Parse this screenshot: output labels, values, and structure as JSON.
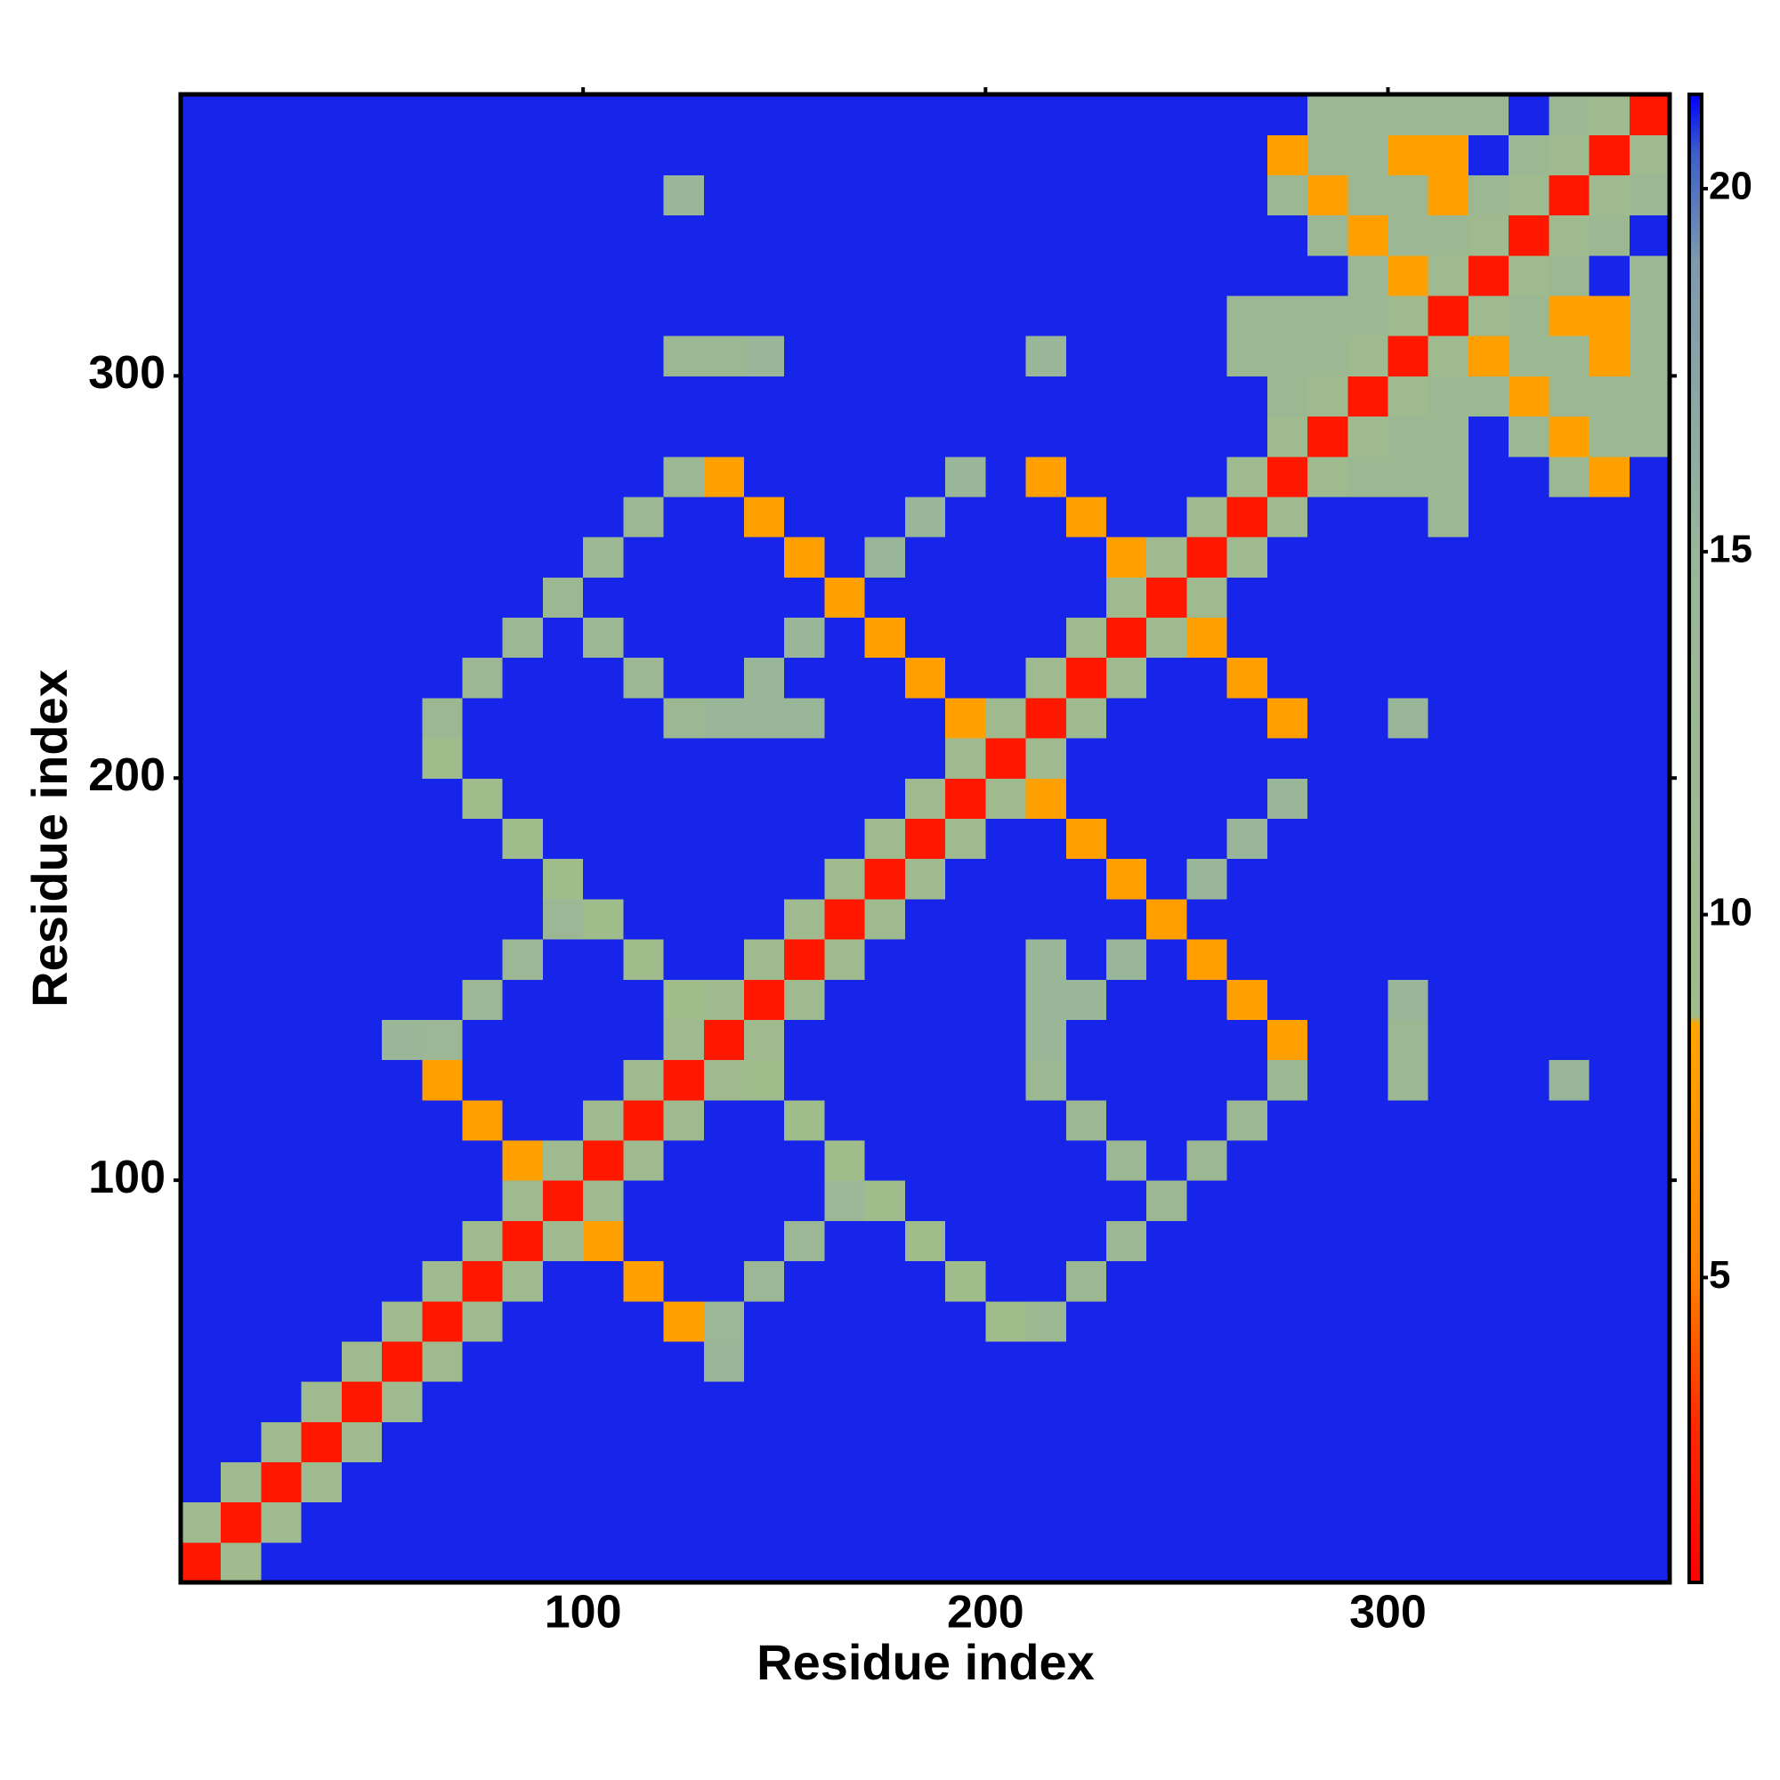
{
  "chart_data": {
    "type": "heatmap",
    "x_label": "Residue index",
    "y_label": "Residue index",
    "x_bins": [
      0,
      10,
      20,
      30,
      40,
      50,
      60,
      70,
      80,
      90,
      100,
      110,
      120,
      130,
      140,
      150,
      160,
      170,
      180,
      190,
      200,
      210,
      220,
      230,
      240,
      250,
      260,
      270,
      280,
      290,
      300,
      310,
      320,
      330,
      340,
      350,
      360,
      370
    ],
    "y_bins": [
      0,
      10,
      20,
      30,
      40,
      50,
      60,
      70,
      80,
      90,
      100,
      110,
      120,
      130,
      140,
      150,
      160,
      170,
      180,
      190,
      200,
      210,
      220,
      230,
      240,
      250,
      260,
      270,
      280,
      290,
      300,
      310,
      320,
      330,
      340,
      350,
      360,
      370
    ],
    "xlim": [
      0,
      370
    ],
    "ylim": [
      0,
      370
    ],
    "xticks": [
      100,
      200,
      300
    ],
    "yticks": [
      100,
      200,
      300
    ],
    "zlim": [
      0.8,
      21.3
    ],
    "zticks": [
      5,
      10,
      15,
      20
    ],
    "colorscale": [
      {
        "value": 0.8,
        "color": "#ff0000"
      },
      {
        "value": 3,
        "color": "#ff2a00"
      },
      {
        "value": 5,
        "color": "#ff8000"
      },
      {
        "value": 8.5,
        "color": "#ffa500"
      },
      {
        "value": 8.6,
        "color": "#9fbc8a"
      },
      {
        "value": 15,
        "color": "#99b59a"
      },
      {
        "value": 19,
        "color": "#7d9aae"
      },
      {
        "value": 20.5,
        "color": "#3d5fc8"
      },
      {
        "value": 21.3,
        "color": "#0000ff"
      }
    ],
    "z": [
      [
        2,
        10,
        21,
        21,
        21,
        21,
        21,
        21,
        21,
        21,
        21,
        21,
        21,
        21,
        21,
        21,
        21,
        21,
        21,
        21,
        21,
        21,
        21,
        21,
        21,
        21,
        21,
        21,
        21,
        21,
        21,
        21,
        21,
        21,
        21,
        21,
        21
      ],
      [
        10,
        2,
        10,
        21,
        21,
        21,
        21,
        21,
        21,
        21,
        21,
        21,
        21,
        21,
        21,
        21,
        21,
        21,
        21,
        21,
        21,
        21,
        21,
        21,
        21,
        21,
        21,
        21,
        21,
        21,
        21,
        21,
        21,
        21,
        21,
        21,
        21
      ],
      [
        21,
        10,
        2,
        10,
        21,
        21,
        21,
        21,
        21,
        21,
        21,
        21,
        21,
        21,
        21,
        21,
        21,
        21,
        21,
        21,
        21,
        21,
        21,
        21,
        21,
        21,
        21,
        21,
        21,
        21,
        21,
        21,
        21,
        21,
        21,
        21,
        21
      ],
      [
        21,
        21,
        10,
        2,
        10,
        21,
        21,
        21,
        21,
        21,
        21,
        21,
        21,
        21,
        21,
        21,
        21,
        21,
        21,
        21,
        21,
        21,
        21,
        21,
        21,
        21,
        21,
        21,
        21,
        21,
        21,
        21,
        21,
        21,
        21,
        21,
        21
      ],
      [
        21,
        21,
        21,
        10,
        2,
        10,
        21,
        21,
        21,
        21,
        21,
        21,
        21,
        21,
        21,
        21,
        21,
        21,
        21,
        21,
        21,
        21,
        21,
        21,
        21,
        21,
        21,
        21,
        21,
        21,
        21,
        21,
        21,
        21,
        21,
        21,
        21
      ],
      [
        21,
        21,
        21,
        21,
        10,
        2,
        10,
        21,
        21,
        21,
        21,
        21,
        21,
        14,
        21,
        21,
        21,
        21,
        21,
        21,
        21,
        21,
        21,
        21,
        21,
        21,
        21,
        21,
        21,
        21,
        21,
        21,
        21,
        21,
        21,
        21,
        21
      ],
      [
        21,
        21,
        21,
        21,
        21,
        10,
        2,
        10,
        21,
        21,
        21,
        21,
        8,
        13,
        21,
        21,
        21,
        21,
        21,
        21,
        9,
        12,
        21,
        21,
        21,
        21,
        21,
        21,
        21,
        21,
        21,
        21,
        21,
        21,
        21,
        21,
        21
      ],
      [
        21,
        21,
        21,
        21,
        21,
        21,
        10,
        2,
        10,
        21,
        21,
        8,
        21,
        21,
        13,
        21,
        21,
        21,
        21,
        9,
        21,
        21,
        12,
        21,
        21,
        21,
        21,
        21,
        21,
        21,
        21,
        21,
        21,
        21,
        21,
        21,
        21
      ],
      [
        21,
        21,
        21,
        21,
        21,
        21,
        21,
        10,
        2,
        10,
        8,
        21,
        21,
        21,
        21,
        13,
        21,
        21,
        9,
        21,
        21,
        21,
        21,
        12,
        21,
        21,
        21,
        21,
        21,
        21,
        21,
        21,
        21,
        21,
        21,
        21,
        21
      ],
      [
        21,
        21,
        21,
        21,
        21,
        21,
        21,
        21,
        10,
        2,
        10,
        21,
        21,
        21,
        21,
        21,
        13,
        9,
        21,
        21,
        21,
        21,
        21,
        21,
        12,
        21,
        21,
        21,
        21,
        21,
        21,
        21,
        21,
        21,
        21,
        21,
        21
      ],
      [
        21,
        21,
        21,
        21,
        21,
        21,
        21,
        21,
        8,
        10,
        2,
        10,
        21,
        21,
        21,
        21,
        9,
        21,
        21,
        21,
        21,
        21,
        21,
        12,
        21,
        12,
        21,
        21,
        21,
        21,
        21,
        21,
        21,
        21,
        21,
        21,
        21
      ],
      [
        21,
        21,
        21,
        21,
        21,
        21,
        21,
        8,
        21,
        21,
        10,
        2,
        10,
        21,
        21,
        9,
        21,
        21,
        21,
        21,
        21,
        21,
        12,
        21,
        21,
        21,
        12,
        21,
        21,
        21,
        21,
        21,
        21,
        21,
        21,
        21,
        21
      ],
      [
        21,
        21,
        21,
        21,
        21,
        21,
        8,
        21,
        21,
        21,
        21,
        10,
        2,
        10,
        9,
        21,
        21,
        21,
        21,
        21,
        21,
        12,
        21,
        21,
        21,
        21,
        21,
        12,
        21,
        21,
        12,
        21,
        21,
        21,
        14,
        21,
        21
      ],
      [
        21,
        21,
        21,
        21,
        21,
        14,
        13,
        21,
        21,
        21,
        21,
        21,
        10,
        2,
        10,
        21,
        21,
        21,
        21,
        21,
        21,
        14,
        21,
        21,
        21,
        21,
        21,
        8,
        21,
        21,
        12,
        21,
        21,
        21,
        21,
        21,
        21
      ],
      [
        21,
        21,
        21,
        21,
        21,
        21,
        21,
        13,
        21,
        21,
        21,
        21,
        9,
        10,
        2,
        10,
        21,
        21,
        21,
        21,
        21,
        14,
        14,
        21,
        21,
        21,
        8,
        21,
        21,
        21,
        14,
        21,
        21,
        21,
        21,
        21,
        21
      ],
      [
        21,
        21,
        21,
        21,
        21,
        21,
        21,
        21,
        13,
        21,
        21,
        9,
        21,
        21,
        10,
        2,
        10,
        21,
        21,
        21,
        21,
        14,
        21,
        14,
        21,
        8,
        21,
        21,
        21,
        21,
        21,
        21,
        21,
        21,
        21,
        21,
        21
      ],
      [
        21,
        21,
        21,
        21,
        21,
        21,
        21,
        21,
        21,
        13,
        9,
        21,
        21,
        21,
        21,
        10,
        2,
        10,
        21,
        21,
        21,
        21,
        21,
        21,
        8,
        21,
        21,
        21,
        21,
        21,
        21,
        21,
        21,
        21,
        21,
        21,
        21
      ],
      [
        21,
        21,
        21,
        21,
        21,
        21,
        21,
        21,
        21,
        9,
        21,
        21,
        21,
        21,
        21,
        21,
        10,
        2,
        10,
        21,
        21,
        21,
        21,
        8,
        21,
        14,
        21,
        21,
        21,
        21,
        21,
        21,
        21,
        21,
        21,
        21,
        21
      ],
      [
        21,
        21,
        21,
        21,
        21,
        21,
        21,
        21,
        9,
        21,
        21,
        21,
        21,
        21,
        21,
        21,
        21,
        10,
        2,
        10,
        21,
        21,
        8,
        21,
        21,
        21,
        14,
        21,
        21,
        21,
        21,
        21,
        21,
        21,
        21,
        21,
        21
      ],
      [
        21,
        21,
        21,
        21,
        21,
        21,
        21,
        9,
        21,
        21,
        21,
        21,
        21,
        21,
        21,
        21,
        21,
        21,
        10,
        2,
        10,
        8,
        21,
        21,
        21,
        21,
        21,
        14,
        21,
        21,
        21,
        21,
        21,
        21,
        21,
        21,
        21
      ],
      [
        21,
        21,
        21,
        21,
        21,
        21,
        9,
        21,
        21,
        21,
        21,
        21,
        21,
        21,
        21,
        21,
        21,
        21,
        21,
        10,
        2,
        10,
        21,
        21,
        21,
        21,
        21,
        21,
        21,
        21,
        21,
        21,
        21,
        21,
        21,
        21,
        21
      ],
      [
        21,
        21,
        21,
        21,
        21,
        21,
        12,
        21,
        21,
        21,
        21,
        21,
        12,
        14,
        14,
        14,
        21,
        21,
        21,
        8,
        10,
        2,
        10,
        21,
        21,
        21,
        21,
        8,
        21,
        21,
        14,
        21,
        21,
        21,
        21,
        21,
        21
      ],
      [
        21,
        21,
        21,
        21,
        21,
        21,
        21,
        12,
        21,
        21,
        21,
        12,
        21,
        21,
        14,
        21,
        21,
        21,
        8,
        21,
        21,
        10,
        2,
        10,
        21,
        21,
        8,
        21,
        21,
        21,
        21,
        21,
        21,
        21,
        21,
        21,
        21
      ],
      [
        21,
        21,
        21,
        21,
        21,
        21,
        21,
        21,
        12,
        21,
        12,
        21,
        21,
        21,
        21,
        14,
        21,
        8,
        21,
        21,
        21,
        21,
        10,
        2,
        10,
        8,
        21,
        21,
        21,
        21,
        21,
        21,
        21,
        21,
        21,
        21,
        21
      ],
      [
        21,
        21,
        21,
        21,
        21,
        21,
        21,
        21,
        21,
        12,
        21,
        21,
        21,
        21,
        21,
        21,
        8,
        21,
        21,
        21,
        21,
        21,
        21,
        10,
        2,
        10,
        21,
        21,
        21,
        21,
        21,
        21,
        21,
        21,
        21,
        21,
        21
      ],
      [
        21,
        21,
        21,
        21,
        21,
        21,
        21,
        21,
        21,
        21,
        12,
        21,
        21,
        21,
        21,
        8,
        21,
        14,
        21,
        21,
        21,
        21,
        21,
        8,
        10,
        2,
        10,
        21,
        21,
        21,
        21,
        21,
        21,
        21,
        21,
        21,
        21
      ],
      [
        21,
        21,
        21,
        21,
        21,
        21,
        21,
        21,
        21,
        21,
        21,
        12,
        21,
        21,
        8,
        21,
        21,
        21,
        14,
        21,
        21,
        21,
        8,
        21,
        21,
        10,
        2,
        10,
        21,
        21,
        21,
        12,
        21,
        21,
        21,
        21,
        21
      ],
      [
        21,
        21,
        21,
        21,
        21,
        21,
        21,
        21,
        21,
        21,
        21,
        21,
        12,
        8,
        21,
        21,
        21,
        21,
        21,
        14,
        21,
        8,
        21,
        21,
        21,
        21,
        10,
        2,
        10,
        12,
        12,
        12,
        21,
        21,
        12,
        8,
        21
      ],
      [
        21,
        21,
        21,
        21,
        21,
        21,
        21,
        21,
        21,
        21,
        21,
        21,
        21,
        21,
        21,
        21,
        21,
        21,
        21,
        21,
        21,
        21,
        21,
        21,
        21,
        21,
        21,
        10,
        2,
        10,
        12,
        12,
        21,
        12,
        8,
        12,
        12
      ],
      [
        21,
        21,
        21,
        21,
        21,
        21,
        21,
        21,
        21,
        21,
        21,
        21,
        21,
        21,
        21,
        21,
        21,
        21,
        21,
        21,
        21,
        21,
        21,
        21,
        21,
        21,
        21,
        12,
        10,
        2,
        10,
        12,
        12,
        8,
        12,
        12,
        12
      ],
      [
        21,
        21,
        21,
        21,
        21,
        21,
        21,
        21,
        21,
        21,
        21,
        21,
        12,
        12,
        14,
        21,
        21,
        21,
        21,
        21,
        21,
        14,
        21,
        21,
        21,
        21,
        12,
        12,
        12,
        10,
        2,
        10,
        8,
        12,
        12,
        8,
        12
      ],
      [
        21,
        21,
        21,
        21,
        21,
        21,
        21,
        21,
        21,
        21,
        21,
        21,
        21,
        21,
        21,
        21,
        21,
        21,
        21,
        21,
        21,
        21,
        21,
        21,
        21,
        21,
        12,
        12,
        12,
        12,
        10,
        2,
        10,
        12,
        8,
        8,
        12
      ],
      [
        21,
        21,
        21,
        21,
        21,
        21,
        21,
        21,
        21,
        21,
        21,
        21,
        21,
        21,
        21,
        21,
        21,
        21,
        21,
        21,
        21,
        21,
        21,
        21,
        21,
        21,
        21,
        21,
        21,
        12,
        8,
        10,
        2,
        10,
        12,
        21,
        12
      ],
      [
        21,
        21,
        21,
        21,
        21,
        21,
        21,
        21,
        21,
        21,
        21,
        21,
        21,
        21,
        21,
        21,
        21,
        21,
        21,
        21,
        21,
        21,
        21,
        21,
        21,
        21,
        21,
        21,
        12,
        8,
        12,
        12,
        10,
        2,
        10,
        12,
        21
      ],
      [
        21,
        21,
        21,
        21,
        21,
        21,
        21,
        21,
        21,
        21,
        21,
        21,
        14,
        21,
        21,
        21,
        21,
        21,
        21,
        21,
        21,
        21,
        21,
        21,
        21,
        21,
        21,
        12,
        8,
        12,
        12,
        8,
        12,
        10,
        2,
        10,
        12
      ],
      [
        21,
        21,
        21,
        21,
        21,
        21,
        21,
        21,
        21,
        21,
        21,
        21,
        21,
        21,
        21,
        21,
        21,
        21,
        21,
        21,
        21,
        21,
        21,
        21,
        21,
        21,
        21,
        8,
        12,
        12,
        8,
        8,
        21,
        12,
        10,
        2,
        10
      ],
      [
        21,
        21,
        21,
        21,
        21,
        21,
        21,
        21,
        21,
        21,
        21,
        21,
        21,
        21,
        21,
        21,
        21,
        21,
        21,
        21,
        21,
        21,
        21,
        21,
        21,
        21,
        21,
        21,
        12,
        12,
        12,
        12,
        12,
        21,
        12,
        10,
        2
      ]
    ]
  }
}
